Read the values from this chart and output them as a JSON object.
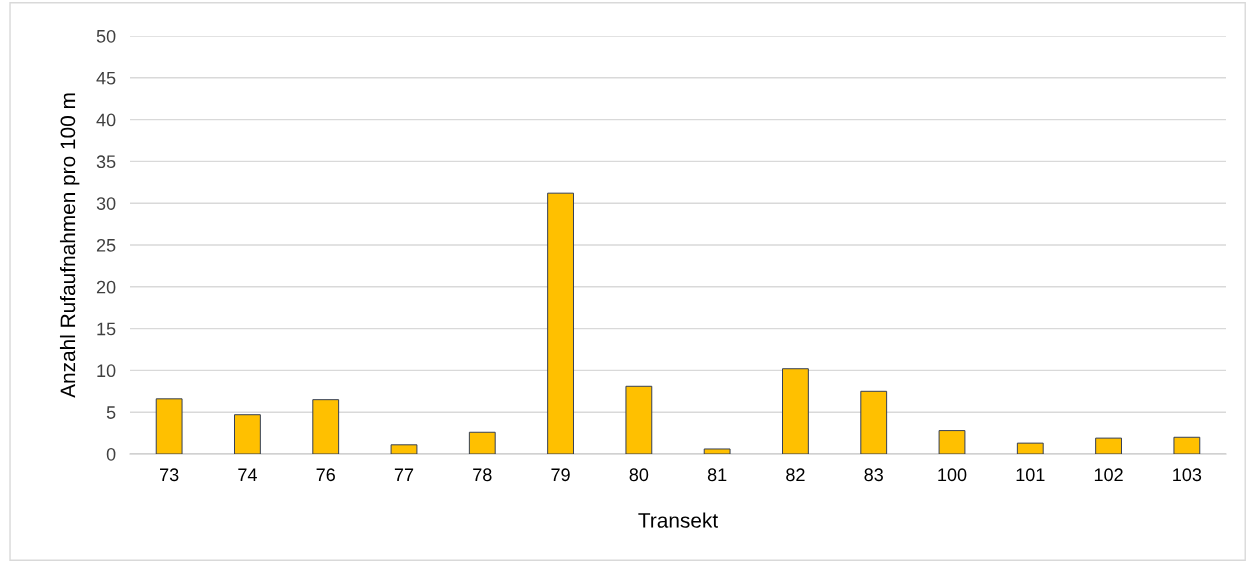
{
  "chart_data": {
    "type": "bar",
    "xlabel": "Transekt",
    "ylabel": "Anzahl Rufaufnahmen pro 100 m",
    "categories": [
      "73",
      "74",
      "76",
      "77",
      "78",
      "79",
      "80",
      "81",
      "82",
      "83",
      "100",
      "101",
      "102",
      "103"
    ],
    "values": [
      6.6,
      4.7,
      6.5,
      1.1,
      2.6,
      31.2,
      8.1,
      0.6,
      10.2,
      7.5,
      2.8,
      1.3,
      1.9,
      2.0
    ],
    "color": "#ffc000",
    "ylim": [
      0,
      50
    ],
    "yticks": [
      0,
      5,
      10,
      15,
      20,
      25,
      30,
      35,
      40,
      45,
      50
    ],
    "grid": "y",
    "legend": false
  }
}
